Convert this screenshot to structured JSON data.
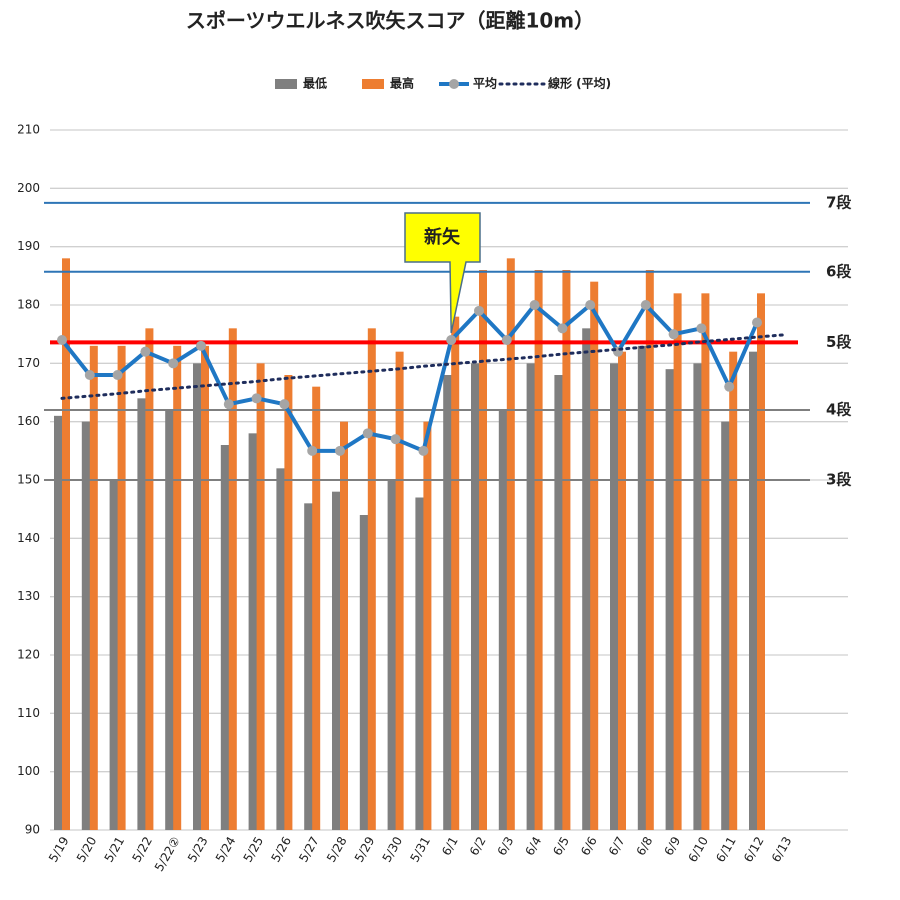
{
  "chart_data": {
    "type": "bar_line",
    "title": "スポーツウエルネス吹矢スコア（距離10m）",
    "categories": [
      "5/19",
      "5/20",
      "5/21",
      "5/22",
      "5/22②",
      "5/23",
      "5/24",
      "5/25",
      "5/26",
      "5/27",
      "5/28",
      "5/29",
      "5/30",
      "5/31",
      "6/1",
      "6/2",
      "6/3",
      "6/4",
      "6/5",
      "6/6",
      "6/7",
      "6/8",
      "6/9",
      "6/10",
      "6/11",
      "6/12",
      "6/13"
    ],
    "series": [
      {
        "name": "最低",
        "kind": "bar",
        "color": "#7f7f7f",
        "values": [
          161,
          160,
          150,
          164,
          162,
          170,
          156,
          158,
          152,
          146,
          148,
          144,
          150,
          147,
          168,
          170,
          162,
          170,
          168,
          176,
          170,
          173,
          169,
          170,
          160,
          172,
          null
        ]
      },
      {
        "name": "最高",
        "kind": "bar",
        "color": "#ed7d31",
        "values": [
          188,
          173,
          173,
          176,
          173,
          173,
          176,
          170,
          168,
          166,
          160,
          176,
          172,
          160,
          178,
          186,
          188,
          186,
          186,
          184,
          172,
          186,
          182,
          182,
          172,
          182,
          null
        ]
      },
      {
        "name": "平均",
        "kind": "line",
        "color": "#1f77c4",
        "marker_color": "#a5a5a5",
        "values": [
          174,
          168,
          168,
          172,
          170,
          173,
          163,
          164,
          163,
          155,
          155,
          158,
          157,
          155,
          174,
          179,
          174,
          180,
          176,
          180,
          172,
          180,
          175,
          176,
          166,
          177,
          null
        ]
      },
      {
        "name": "線形 (平均)",
        "kind": "trend",
        "color": "#1f2d5c",
        "values": [
          164,
          164.4,
          164.8,
          165.3,
          165.7,
          166.1,
          166.5,
          166.9,
          167.4,
          167.8,
          168.2,
          168.6,
          169,
          169.5,
          169.9,
          170.3,
          170.7,
          171.1,
          171.6,
          172,
          172.4,
          172.8,
          173.2,
          173.7,
          174.1,
          174.5,
          174.9
        ]
      }
    ],
    "reference_lines": [
      {
        "label": "7段",
        "value": 197.5,
        "color": "#2e75b6",
        "label_color": "#111111"
      },
      {
        "label": "6段",
        "value": 185.7,
        "color": "#2e75b6",
        "label_color": "#111111"
      },
      {
        "label": "5段",
        "value": 173.6,
        "color": "#ff0000",
        "label_color": "#2e75b6"
      },
      {
        "label": "4段",
        "value": 162,
        "color": "#7f7f7f",
        "label_color": "#111111"
      },
      {
        "label": "3段",
        "value": 150,
        "color": "#7f7f7f",
        "label_color": "#111111"
      }
    ],
    "annotation": {
      "text": "新矢",
      "category_index": 14,
      "value": 179
    },
    "ylim": [
      90,
      210
    ],
    "yticks": [
      90,
      100,
      110,
      120,
      130,
      140,
      150,
      160,
      170,
      180,
      190,
      200,
      210
    ],
    "grid": true
  }
}
